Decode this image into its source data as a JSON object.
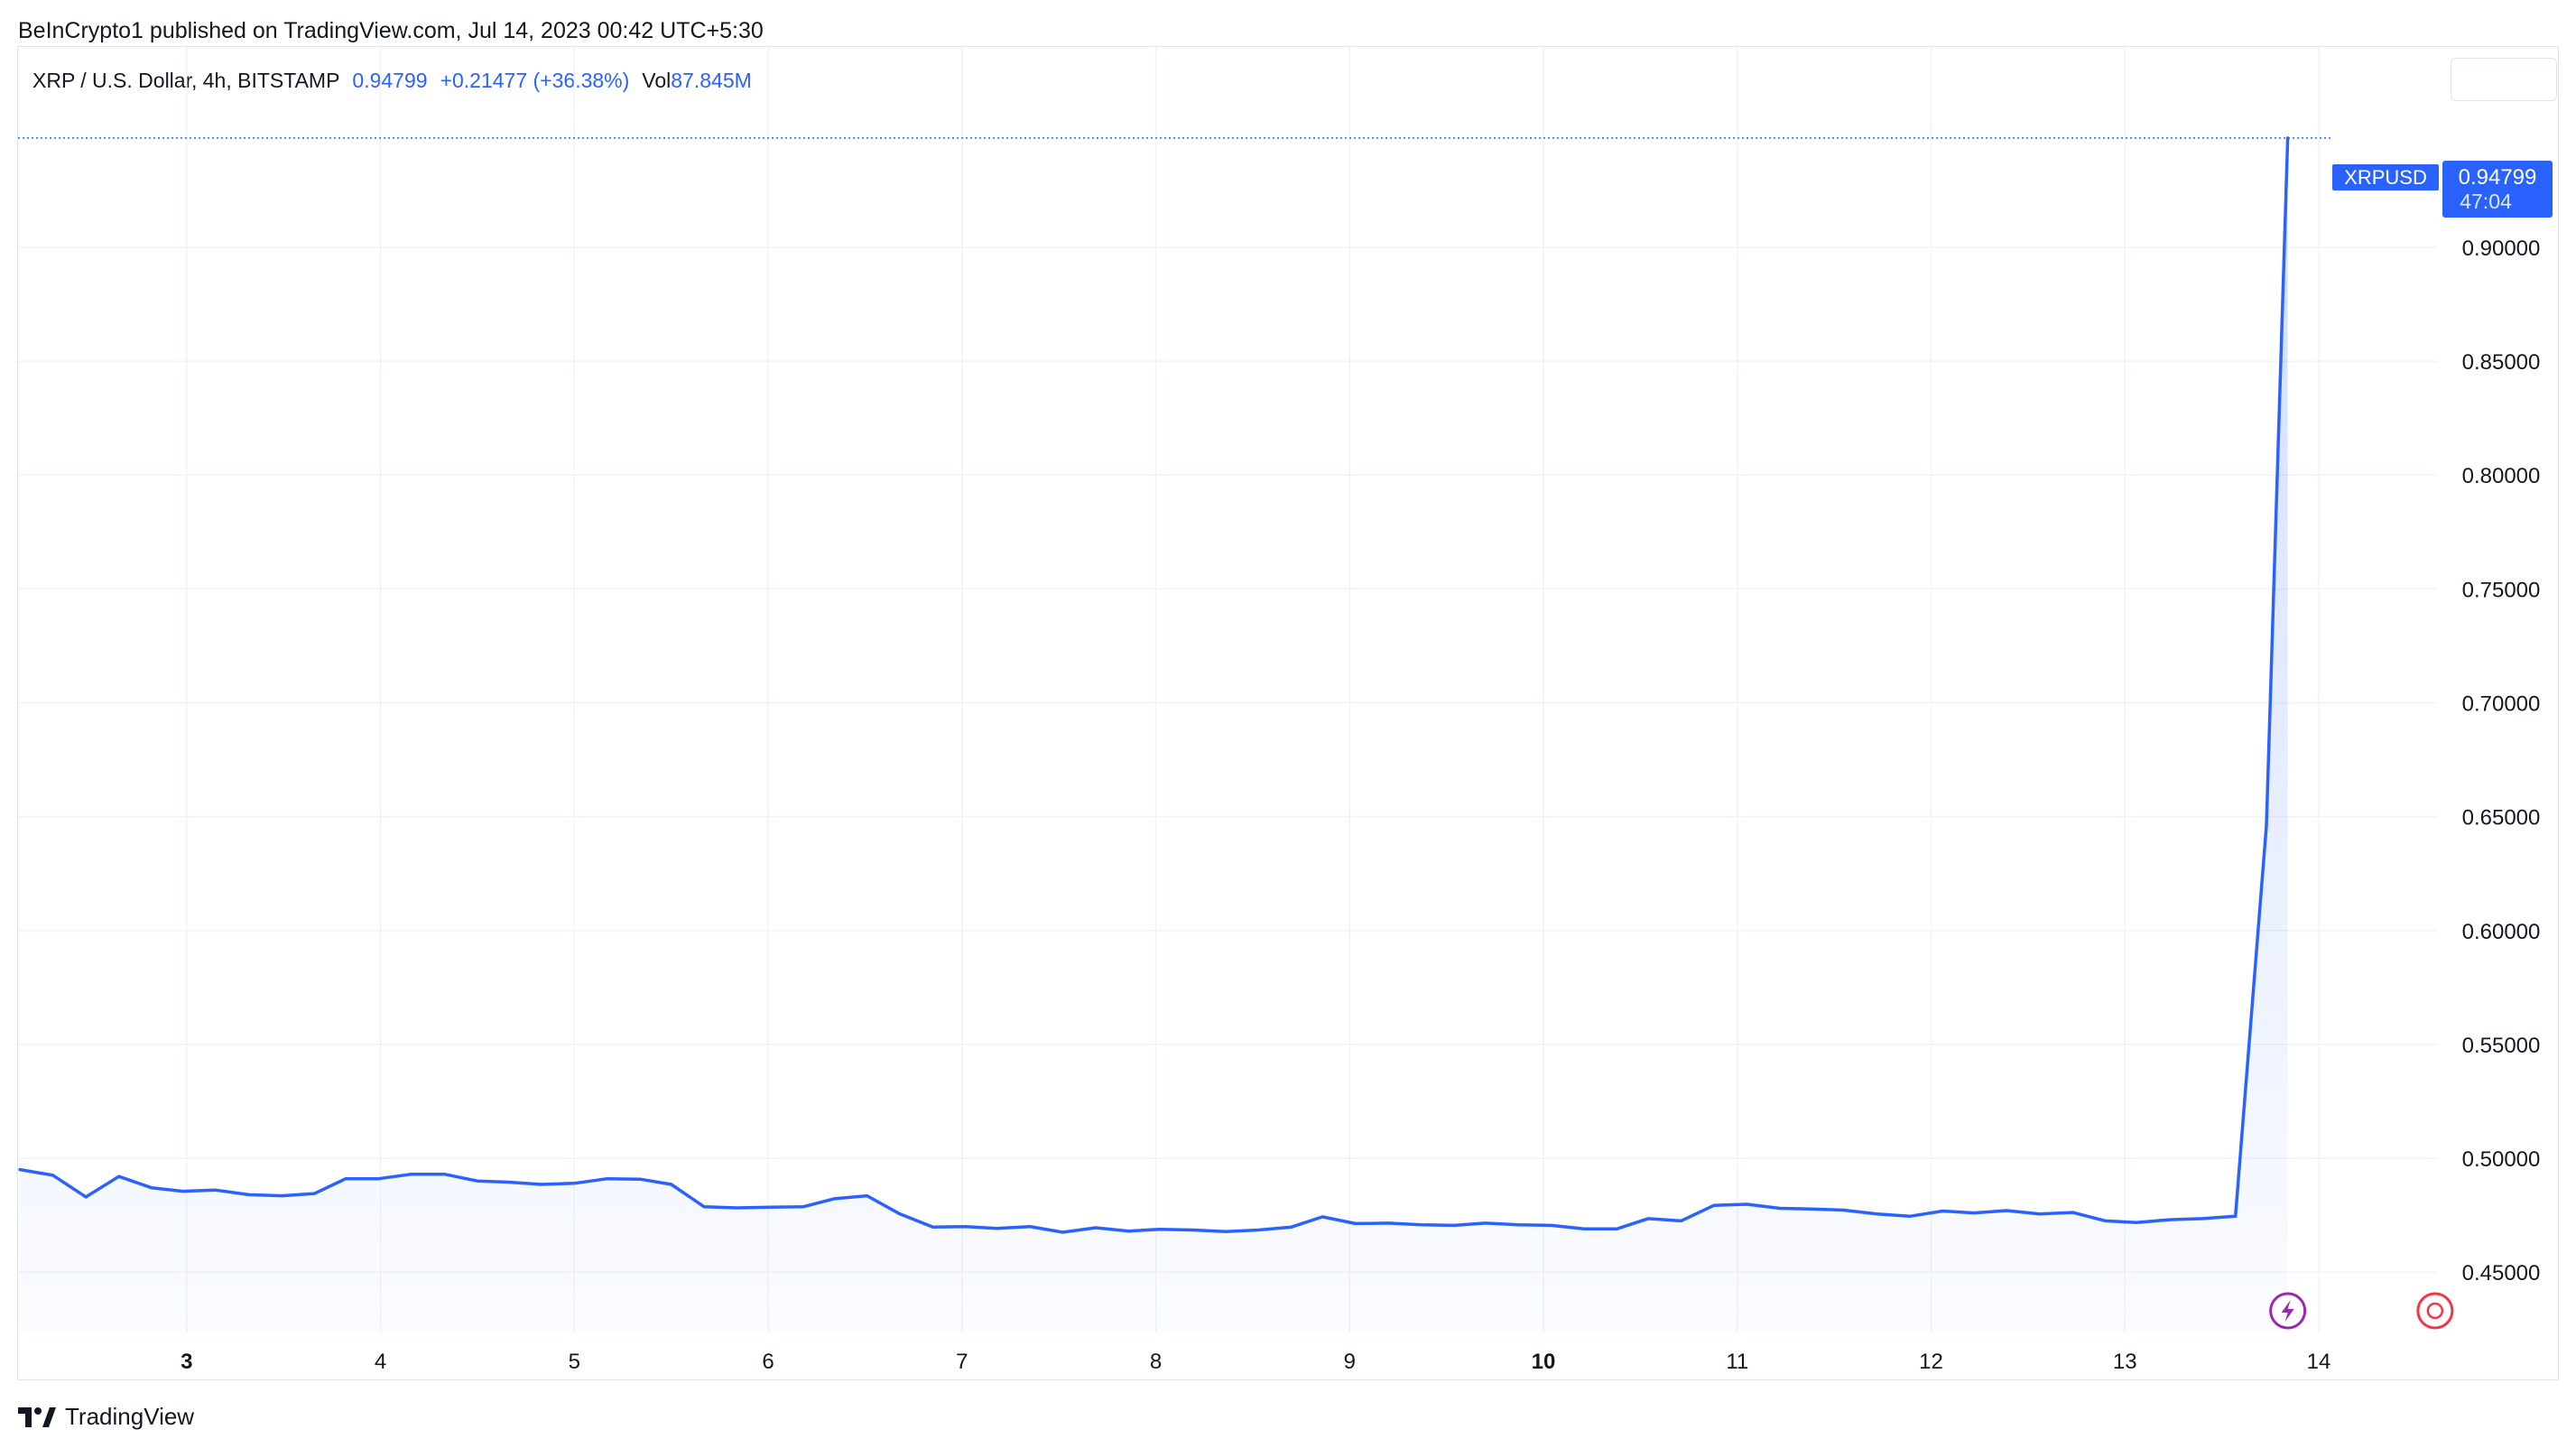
{
  "header": {
    "publisher_line": "BeInCrypto1 published on TradingView.com, Jul 14, 2023 00:42 UTC+5:30"
  },
  "legend": {
    "symbol": "XRP / U.S. Dollar, 4h, BITSTAMP",
    "price": "0.94799",
    "change": "+0.21477 (+36.38%)",
    "vol_label": "Vol",
    "vol_value": "87.845M"
  },
  "price_tag": {
    "ticker": "XRPUSD",
    "price": "0.94799",
    "countdown": "47:04"
  },
  "footer": {
    "brand": "TradingView"
  },
  "colors": {
    "line": "#2962ff",
    "grid": "#f0f3fa",
    "axis_text": "#131722",
    "tag_bg": "#2962ff"
  },
  "icons": [
    "lightning-event-icon",
    "economic-event-icon",
    "tradingview-logo-icon"
  ],
  "chart_data": {
    "type": "area",
    "title": "XRP / U.S. Dollar, 4h, BITSTAMP",
    "xlabel": "",
    "ylabel": "",
    "x_ticks": [
      {
        "label": "3",
        "day": 3,
        "bold": true
      },
      {
        "label": "4",
        "day": 4,
        "bold": false
      },
      {
        "label": "5",
        "day": 5,
        "bold": false
      },
      {
        "label": "6",
        "day": 6,
        "bold": false
      },
      {
        "label": "7",
        "day": 7,
        "bold": false
      },
      {
        "label": "8",
        "day": 8,
        "bold": false
      },
      {
        "label": "9",
        "day": 9,
        "bold": false
      },
      {
        "label": "10",
        "day": 10,
        "bold": true
      },
      {
        "label": "11",
        "day": 11,
        "bold": false
      },
      {
        "label": "12",
        "day": 12,
        "bold": false
      },
      {
        "label": "13",
        "day": 13,
        "bold": false
      },
      {
        "label": "14",
        "day": 14,
        "bold": false
      }
    ],
    "y_ticks": [
      "0.45000",
      "0.50000",
      "0.55000",
      "0.60000",
      "0.65000",
      "0.70000",
      "0.75000",
      "0.80000",
      "0.85000",
      "0.90000"
    ],
    "ylim": [
      0.4235,
      0.988
    ],
    "xlim": [
      2.13,
      14.61
    ],
    "grid": true,
    "current_price": 0.94799,
    "series": [
      {
        "values": [
          [
            2.14,
            0.495
          ],
          [
            2.31,
            0.4925
          ],
          [
            2.48,
            0.483
          ],
          [
            2.65,
            0.492
          ],
          [
            2.82,
            0.487
          ],
          [
            2.98,
            0.4855
          ],
          [
            3.15,
            0.486
          ],
          [
            3.32,
            0.484
          ],
          [
            3.49,
            0.4835
          ],
          [
            3.66,
            0.4845
          ],
          [
            3.82,
            0.491
          ],
          [
            3.99,
            0.491
          ],
          [
            4.16,
            0.493
          ],
          [
            4.33,
            0.493
          ],
          [
            4.5,
            0.49
          ],
          [
            4.66,
            0.4895
          ],
          [
            4.83,
            0.4885
          ],
          [
            5.0,
            0.489
          ],
          [
            5.17,
            0.491
          ],
          [
            5.34,
            0.4908
          ],
          [
            5.5,
            0.4885
          ],
          [
            5.67,
            0.4787
          ],
          [
            5.84,
            0.4782
          ],
          [
            6.01,
            0.4785
          ],
          [
            6.18,
            0.4787
          ],
          [
            6.34,
            0.4822
          ],
          [
            6.51,
            0.4835
          ],
          [
            6.68,
            0.4755
          ],
          [
            6.85,
            0.4698
          ],
          [
            7.02,
            0.47
          ],
          [
            7.18,
            0.4692
          ],
          [
            7.35,
            0.47
          ],
          [
            7.52,
            0.4675
          ],
          [
            7.69,
            0.4695
          ],
          [
            7.86,
            0.468
          ],
          [
            8.02,
            0.4688
          ],
          [
            8.19,
            0.4685
          ],
          [
            8.36,
            0.4678
          ],
          [
            8.53,
            0.4685
          ],
          [
            8.7,
            0.4698
          ],
          [
            8.86,
            0.4743
          ],
          [
            9.03,
            0.4713
          ],
          [
            9.2,
            0.4715
          ],
          [
            9.37,
            0.4708
          ],
          [
            9.54,
            0.4705
          ],
          [
            9.7,
            0.4715
          ],
          [
            9.87,
            0.4708
          ],
          [
            10.04,
            0.4705
          ],
          [
            10.21,
            0.469
          ],
          [
            10.38,
            0.469
          ],
          [
            10.54,
            0.4735
          ],
          [
            10.71,
            0.4725
          ],
          [
            10.88,
            0.4793
          ],
          [
            11.05,
            0.4798
          ],
          [
            11.22,
            0.478
          ],
          [
            11.38,
            0.4777
          ],
          [
            11.55,
            0.4772
          ],
          [
            11.72,
            0.4755
          ],
          [
            11.89,
            0.4745
          ],
          [
            12.06,
            0.4768
          ],
          [
            12.22,
            0.476
          ],
          [
            12.39,
            0.477
          ],
          [
            12.56,
            0.4755
          ],
          [
            12.73,
            0.4762
          ],
          [
            12.9,
            0.4725
          ],
          [
            13.06,
            0.4718
          ],
          [
            13.23,
            0.473
          ],
          [
            13.4,
            0.4735
          ],
          [
            13.57,
            0.4745
          ],
          [
            13.73,
            0.646
          ],
          [
            13.84,
            0.94799
          ]
        ]
      }
    ],
    "events": [
      {
        "day": 13.84,
        "icon": "lightning-event-icon"
      },
      {
        "day": 14.6,
        "icon": "economic-event-icon"
      }
    ]
  }
}
